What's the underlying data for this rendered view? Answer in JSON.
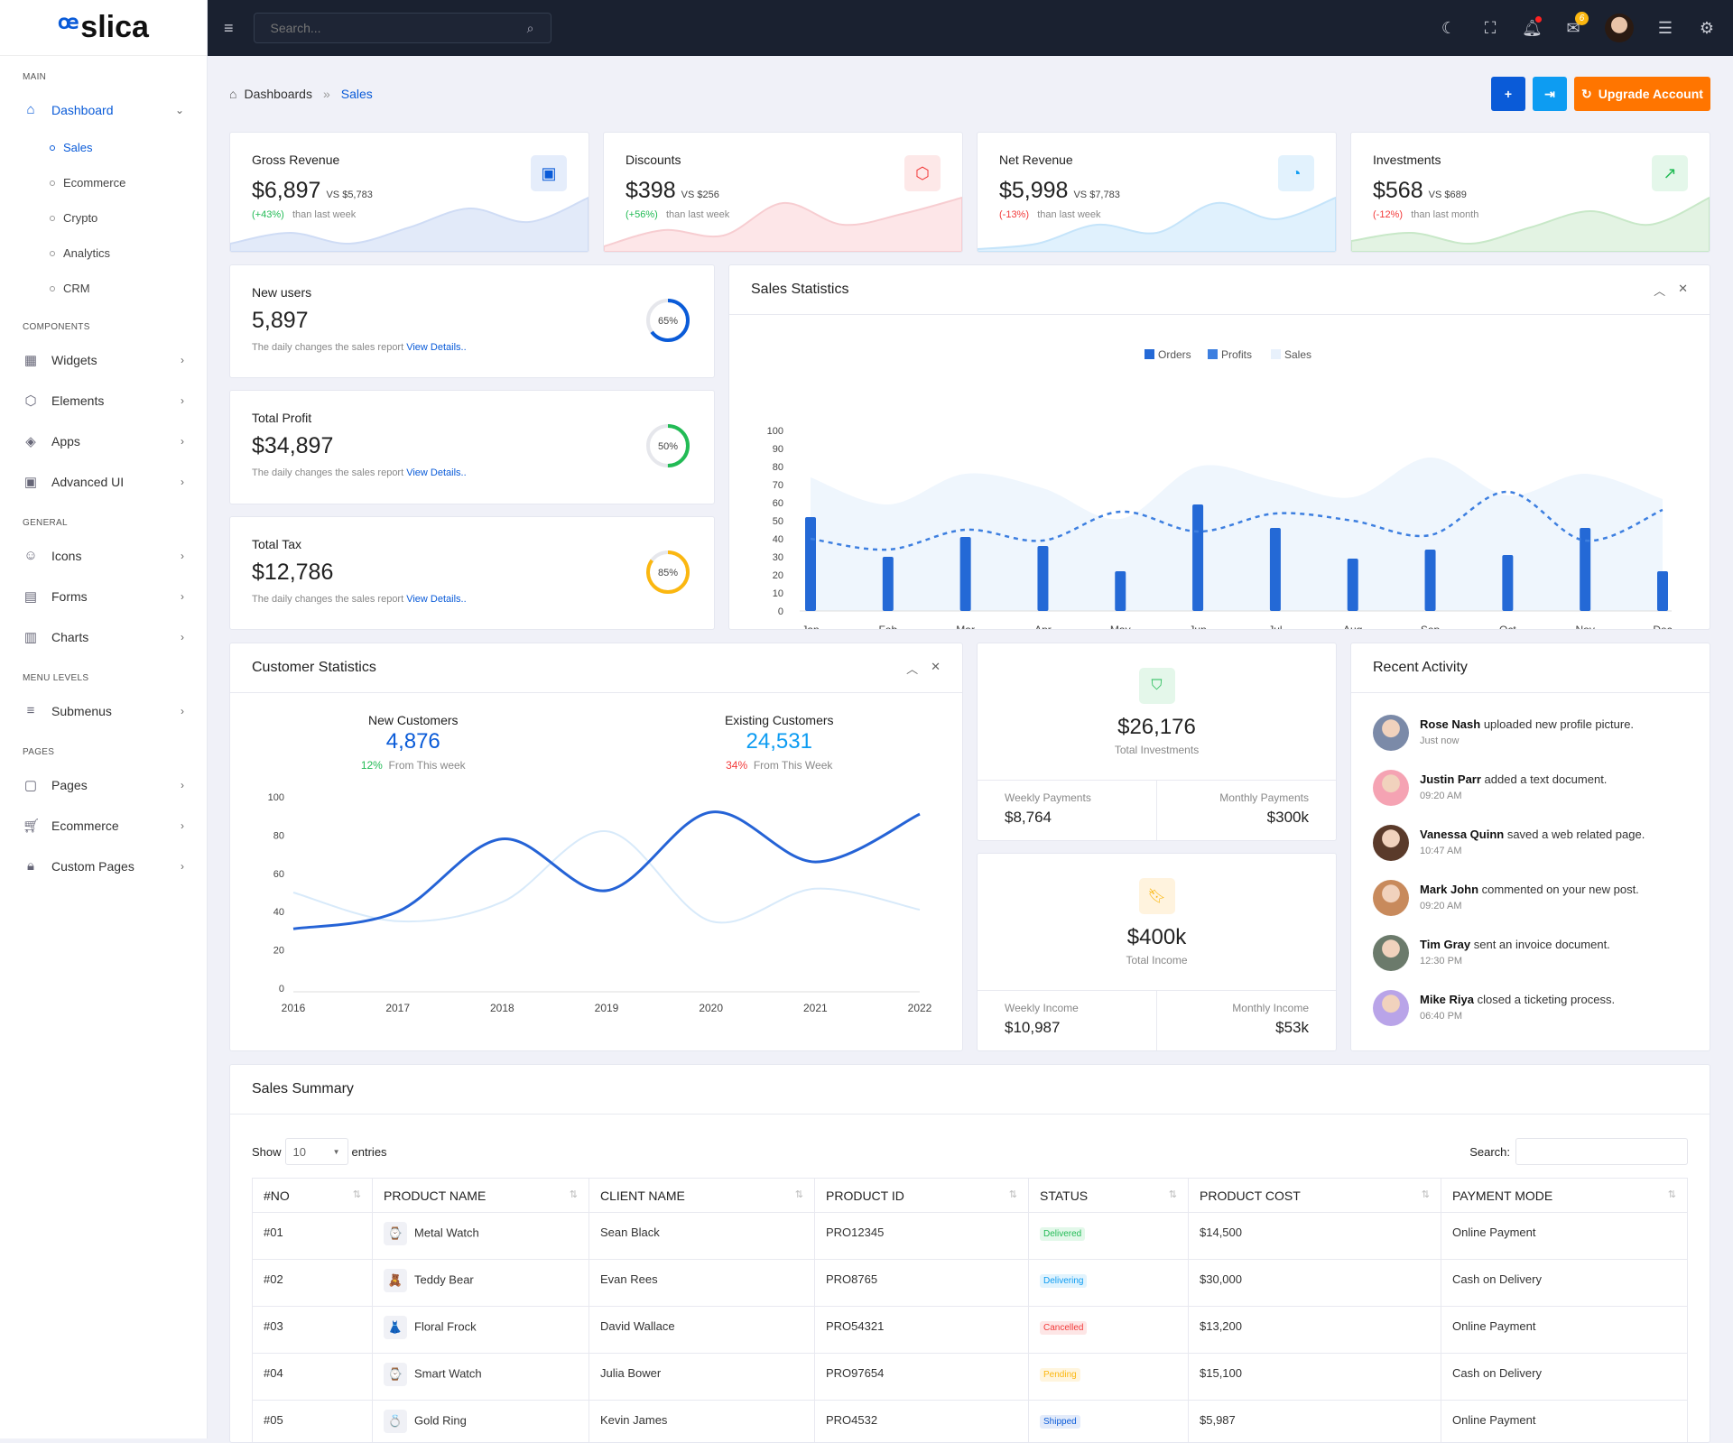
{
  "brand": "slica",
  "sidebar": {
    "sections": [
      {
        "title": "MAIN",
        "items": [
          {
            "label": "Dashboard",
            "icon": "home-icon",
            "active": true,
            "children": [
              {
                "label": "Sales",
                "active": true
              },
              {
                "label": "Ecommerce"
              },
              {
                "label": "Crypto"
              },
              {
                "label": "Analytics"
              },
              {
                "label": "CRM"
              }
            ]
          }
        ]
      },
      {
        "title": "COMPONENTS",
        "items": [
          {
            "label": "Widgets",
            "icon": "grid-icon"
          },
          {
            "label": "Elements",
            "icon": "box-icon"
          },
          {
            "label": "Apps",
            "icon": "layers-icon"
          },
          {
            "label": "Advanced UI",
            "icon": "briefcase-icon"
          }
        ]
      },
      {
        "title": "GENERAL",
        "items": [
          {
            "label": "Icons",
            "icon": "smile-icon"
          },
          {
            "label": "Forms",
            "icon": "file-icon"
          },
          {
            "label": "Charts",
            "icon": "bar-chart-icon"
          }
        ]
      },
      {
        "title": "MENU LEVELS",
        "items": [
          {
            "label": "Submenus",
            "icon": "menu-icon"
          }
        ]
      },
      {
        "title": "PAGES",
        "items": [
          {
            "label": "Pages",
            "icon": "page-icon"
          },
          {
            "label": "Ecommerce",
            "icon": "cart-icon"
          },
          {
            "label": "Custom Pages",
            "icon": "lock-icon"
          }
        ]
      }
    ]
  },
  "topbar": {
    "search_placeholder": "Search...",
    "mail_count": "6"
  },
  "breadcrumb": {
    "root": "Dashboards",
    "current": "Sales"
  },
  "actions": {
    "add": "+",
    "login": "⇥",
    "upgrade": "Upgrade Account"
  },
  "colors": {
    "primary": "#0a5bd8",
    "info": "#0d9cf2",
    "orange": "#ff7500",
    "success": "#22bb55",
    "danger": "#f23a3a",
    "warning": "#fbb710"
  },
  "stats": [
    {
      "title": "Gross Revenue",
      "value": "$6,897",
      "vs": "VS $5,783",
      "change": "(+43%)",
      "period": "than last week",
      "positive": true,
      "icon": "briefcase-icon",
      "color": "#0a5bd8",
      "bg": "#e5edfb",
      "fill": "#e2eaf9",
      "line": "#cfdcf5"
    },
    {
      "title": "Discounts",
      "value": "$398",
      "vs": "VS $256",
      "change": "(+56%)",
      "period": "than last week",
      "positive": true,
      "icon": "box-icon",
      "color": "#f23a3a",
      "bg": "#fde8e8",
      "fill": "#fde6e8",
      "line": "#f7cdd1"
    },
    {
      "title": "Net Revenue",
      "value": "$5,998",
      "vs": "VS $7,783",
      "change": "(-13%)",
      "period": "than last week",
      "positive": false,
      "icon": "pie-chart-icon",
      "color": "#0d9cf2",
      "bg": "#e2f2fd",
      "fill": "#e0f1fd",
      "line": "#c5e4fa"
    },
    {
      "title": "Investments",
      "value": "$568",
      "vs": "VS $689",
      "change": "(-12%)",
      "period": "than last month",
      "positive": false,
      "icon": "trending-up-icon",
      "color": "#22bb55",
      "bg": "#e4f7ea",
      "fill": "#e3f3e3",
      "line": "#c8e8c8"
    }
  ],
  "minis": [
    {
      "title": "New users",
      "value": "5,897",
      "desc": "The daily changes the sales report",
      "link": "View Details..",
      "percent": 65,
      "label": "65%",
      "color": "#0a5bd8"
    },
    {
      "title": "Total Profit",
      "value": "$34,897",
      "desc": "The daily changes the sales report",
      "link": "View Details..",
      "percent": 50,
      "label": "50%",
      "color": "#22bb55"
    },
    {
      "title": "Total Tax",
      "value": "$12,786",
      "desc": "The daily changes the sales report",
      "link": "View Details..",
      "percent": 85,
      "label": "85%",
      "color": "#fbb710"
    }
  ],
  "sales_statistics": {
    "title": "Sales Statistics"
  },
  "customer_statistics": {
    "title": "Customer Statistics",
    "new_label": "New Customers",
    "new_value": "4,876",
    "new_pct": "12%",
    "new_period": "From This week",
    "existing_label": "Existing Customers",
    "existing_value": "24,531",
    "existing_pct": "34%",
    "existing_period": "From This Week"
  },
  "chart_data": [
    {
      "type": "bar",
      "categories": [
        "Jan",
        "Feb",
        "Mar",
        "Apr",
        "May",
        "Jun",
        "Jul",
        "Aug",
        "Sep",
        "Oct",
        "Nov",
        "Dec"
      ],
      "ylim": [
        0,
        100
      ],
      "yticks": [
        0,
        10,
        20,
        30,
        40,
        50,
        60,
        70,
        80,
        90,
        100
      ],
      "legend": "top-center",
      "grid": false,
      "series": [
        {
          "name": "Orders",
          "type": "bar",
          "color": "#2469d6",
          "values": [
            52,
            30,
            41,
            36,
            22,
            59,
            46,
            29,
            34,
            31,
            46,
            22
          ]
        },
        {
          "name": "Profits",
          "type": "line-dashed",
          "color": "#3d7fe0",
          "values": [
            40,
            34,
            45,
            39,
            55,
            44,
            54,
            50,
            42,
            66,
            39,
            56
          ]
        },
        {
          "name": "Sales",
          "type": "area",
          "color": "#eef5fd",
          "values": [
            74,
            59,
            76,
            68,
            51,
            80,
            72,
            63,
            85,
            64,
            76,
            62
          ]
        }
      ]
    },
    {
      "type": "line",
      "x": [
        "2016",
        "2017",
        "2018",
        "2019",
        "2020",
        "2021",
        "2022"
      ],
      "ylim": [
        0,
        100
      ],
      "yticks": [
        0,
        20,
        40,
        60,
        80,
        100
      ],
      "grid": false,
      "series": [
        {
          "color": "#2563d6",
          "values": [
            31,
            40,
            78,
            51,
            92,
            66,
            91
          ]
        },
        {
          "color": "#d8eafa",
          "values": [
            50,
            35,
            45,
            82,
            35,
            52,
            41
          ]
        }
      ]
    }
  ],
  "investments": {
    "value": "$26,176",
    "label": "Total Investments",
    "weekly_label": "Weekly Payments",
    "weekly": "$8,764",
    "monthly_label": "Monthly Payments",
    "monthly": "$300k"
  },
  "income": {
    "value": "$400k",
    "label": "Total Income",
    "weekly_label": "Weekly Income",
    "weekly": "$10,987",
    "monthly_label": "Monthly Income",
    "monthly": "$53k"
  },
  "recent_activity": {
    "title": "Recent Activity",
    "items": [
      {
        "name": "Rose Nash",
        "text": "uploaded new profile picture.",
        "time": "Just now",
        "color": "#7b8aa8"
      },
      {
        "name": "Justin Parr",
        "text": "added a text document.",
        "time": "09:20 AM",
        "color": "#f5a3b3"
      },
      {
        "name": "Vanessa Quinn",
        "text": "saved a web related page.",
        "time": "10:47 AM",
        "color": "#5a3a2a"
      },
      {
        "name": "Mark John",
        "text": "commented on your new post.",
        "time": "09:20 AM",
        "color": "#c88a5c"
      },
      {
        "name": "Tim Gray",
        "text": "sent an invoice document.",
        "time": "12:30 PM",
        "color": "#6b7a6b"
      },
      {
        "name": "Mike Riya",
        "text": "closed a ticketing process.",
        "time": "06:40 PM",
        "color": "#b9a4e8"
      }
    ]
  },
  "sales_summary": {
    "title": "Sales Summary",
    "show": "Show",
    "entries": "entries",
    "page_size": "10",
    "search_label": "Search:",
    "columns": [
      "#NO",
      "PRODUCT NAME",
      "CLIENT NAME",
      "PRODUCT ID",
      "STATUS",
      "PRODUCT COST",
      "PAYMENT MODE"
    ],
    "rows": [
      {
        "no": "#01",
        "product": "Metal Watch",
        "icon": "⌚",
        "client": "Sean Black",
        "id": "PRO12345",
        "status": "Delivered",
        "status_color": "#22bb55",
        "status_bg": "#e3f8ea",
        "cost": "$14,500",
        "mode": "Online Payment"
      },
      {
        "no": "#02",
        "product": "Teddy Bear",
        "icon": "🧸",
        "client": "Evan Rees",
        "id": "PRO8765",
        "status": "Delivering",
        "status_color": "#0d9cf2",
        "status_bg": "#e1f3fd",
        "cost": "$30,000",
        "mode": "Cash on Delivery"
      },
      {
        "no": "#03",
        "product": "Floral Frock",
        "icon": "👗",
        "client": "David Wallace",
        "id": "PRO54321",
        "status": "Cancelled",
        "status_color": "#f23a3a",
        "status_bg": "#fde6e6",
        "cost": "$13,200",
        "mode": "Online Payment"
      },
      {
        "no": "#04",
        "product": "Smart Watch",
        "icon": "⌚",
        "client": "Julia Bower",
        "id": "PRO97654",
        "status": "Pending",
        "status_color": "#fbb710",
        "status_bg": "#fff5de",
        "cost": "$15,100",
        "mode": "Cash on Delivery"
      },
      {
        "no": "#05",
        "product": "Gold Ring",
        "icon": "💍",
        "client": "Kevin James",
        "id": "PRO4532",
        "status": "Shipped",
        "status_color": "#0a5bd8",
        "status_bg": "#e3ebfa",
        "cost": "$5,987",
        "mode": "Online Payment"
      }
    ]
  }
}
